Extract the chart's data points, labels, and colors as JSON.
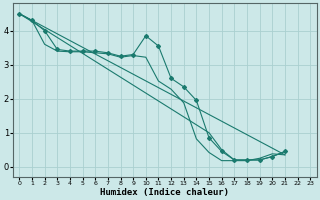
{
  "title": "",
  "xlabel": "Humidex (Indice chaleur)",
  "ylabel": "",
  "bg_color": "#cce8e8",
  "grid_color": "#aad0d0",
  "line_color": "#1a7a6e",
  "marker": "D",
  "markersize": 2,
  "linewidth": 0.8,
  "xlim": [
    -0.5,
    23.5
  ],
  "ylim": [
    -0.3,
    4.8
  ],
  "yticks": [
    0,
    1,
    2,
    3,
    4
  ],
  "xtick_labels": [
    "0",
    "1",
    "2",
    "3",
    "4",
    "5",
    "6",
    "7",
    "8",
    "9",
    "10",
    "11",
    "12",
    "13",
    "14",
    "15",
    "16",
    "17",
    "18",
    "19",
    "20",
    "21",
    "22",
    "23"
  ],
  "xticks": [
    0,
    1,
    2,
    3,
    4,
    5,
    6,
    7,
    8,
    9,
    10,
    11,
    12,
    13,
    14,
    15,
    16,
    17,
    18,
    19,
    20,
    21,
    22,
    23
  ],
  "lines": [
    {
      "x": [
        0,
        1,
        2,
        3,
        4,
        5,
        6,
        7,
        8,
        9,
        10,
        11,
        12,
        13,
        14,
        15,
        16,
        17,
        18,
        19,
        20,
        21
      ],
      "y": [
        4.5,
        4.3,
        4.0,
        3.45,
        3.4,
        3.4,
        3.4,
        3.35,
        3.25,
        3.3,
        3.85,
        3.55,
        2.6,
        2.35,
        1.95,
        0.85,
        0.45,
        0.2,
        0.2,
        0.2,
        0.3,
        0.45
      ],
      "marker": true
    },
    {
      "x": [
        0,
        21
      ],
      "y": [
        4.5,
        0.35
      ],
      "marker": false
    },
    {
      "x": [
        0,
        1,
        2,
        3,
        4,
        5,
        6,
        7,
        8,
        9,
        10,
        11,
        12,
        13,
        14,
        15,
        16,
        17,
        18,
        19,
        20,
        21
      ],
      "y": [
        4.5,
        4.3,
        3.6,
        3.4,
        3.38,
        3.38,
        3.35,
        3.32,
        3.22,
        3.27,
        3.22,
        2.52,
        2.28,
        1.88,
        0.82,
        0.42,
        0.18,
        0.18,
        0.18,
        0.25,
        0.38,
        0.35
      ],
      "marker": false
    },
    {
      "x": [
        0,
        15,
        16,
        17,
        18,
        19,
        20,
        21
      ],
      "y": [
        4.5,
        1.0,
        0.5,
        0.2,
        0.2,
        0.2,
        0.3,
        0.45
      ],
      "marker": false
    }
  ]
}
